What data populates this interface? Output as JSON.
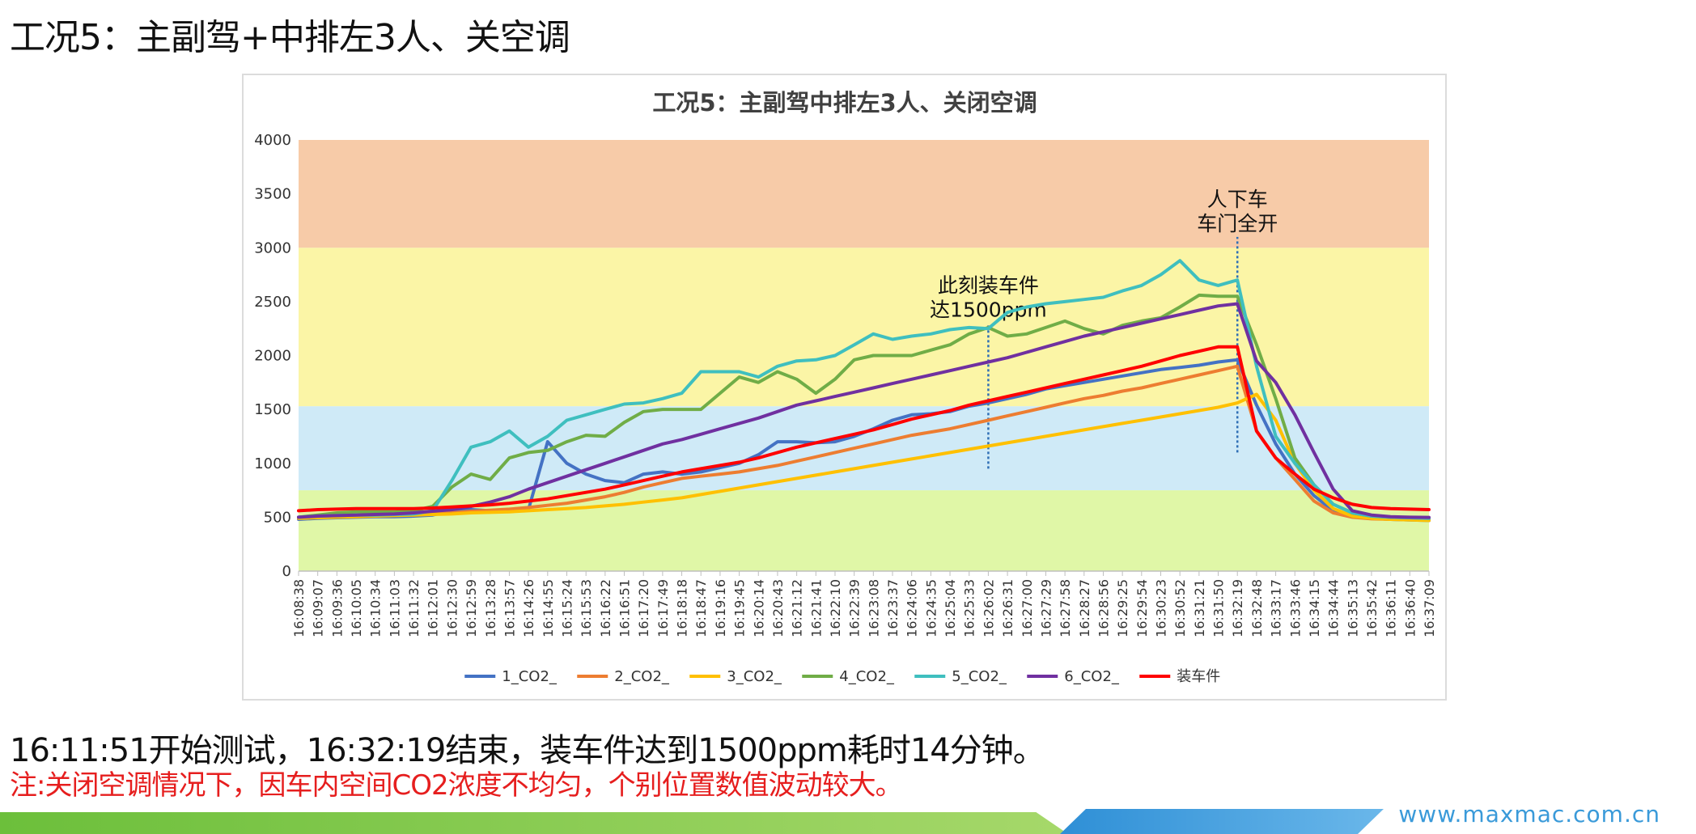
{
  "slide": {
    "title": "工况5：主副驾+中排左3人、关空调",
    "summary": "16:11:51开始测试，16:32:19结束，装车件达到1500ppm耗时14分钟。",
    "note": "注:关闭空调情况下，因车内空间CO2浓度不均匀，个别位置数值波动较大。",
    "footer_url": "www.maxmac.com.cn"
  },
  "chart_data": {
    "type": "line",
    "title": "工况5：主副驾中排左3人、关闭空调",
    "xlabel": "",
    "ylabel": "",
    "ylim": [
      0,
      4000
    ],
    "yticks": [
      0,
      500,
      1000,
      1500,
      2000,
      2500,
      3000,
      3500,
      4000
    ],
    "grid": false,
    "legend": "bottom",
    "bands": [
      {
        "from": 0,
        "to": 750,
        "color": "#e0f7a7"
      },
      {
        "from": 750,
        "to": 1530,
        "color": "#cfeaf7"
      },
      {
        "from": 1530,
        "to": 3000,
        "color": "#fbf5a6"
      },
      {
        "from": 3000,
        "to": 4000,
        "color": "#f7cba8"
      }
    ],
    "x": [
      "16:08:38",
      "16:09:07",
      "16:09:36",
      "16:10:05",
      "16:10:34",
      "16:11:03",
      "16:11:32",
      "16:12:01",
      "16:12:30",
      "16:12:59",
      "16:13:28",
      "16:13:57",
      "16:14:26",
      "16:14:55",
      "16:15:24",
      "16:15:53",
      "16:16:22",
      "16:16:51",
      "16:17:20",
      "16:17:49",
      "16:18:18",
      "16:18:47",
      "16:19:16",
      "16:19:45",
      "16:20:14",
      "16:20:43",
      "16:21:12",
      "16:21:41",
      "16:22:10",
      "16:22:39",
      "16:23:08",
      "16:23:37",
      "16:24:06",
      "16:24:35",
      "16:25:04",
      "16:25:33",
      "16:26:02",
      "16:26:31",
      "16:27:00",
      "16:27:29",
      "16:27:58",
      "16:28:27",
      "16:28:56",
      "16:29:25",
      "16:29:54",
      "16:30:23",
      "16:30:52",
      "16:31:21",
      "16:31:50",
      "16:32:19",
      "16:32:48",
      "16:33:17",
      "16:33:46",
      "16:34:15",
      "16:34:44",
      "16:35:13",
      "16:35:42",
      "16:36:11",
      "16:36:40",
      "16:37:09"
    ],
    "series": [
      {
        "name": "1_CO2_",
        "color": "#4472c4",
        "values": [
          480,
          490,
          495,
          500,
          505,
          505,
          510,
          520,
          560,
          570,
          560,
          560,
          570,
          1200,
          1000,
          900,
          840,
          820,
          900,
          920,
          900,
          920,
          960,
          1000,
          1080,
          1200,
          1200,
          1190,
          1200,
          1250,
          1320,
          1400,
          1450,
          1460,
          1480,
          1530,
          1560,
          1600,
          1640,
          1690,
          1720,
          1750,
          1780,
          1810,
          1840,
          1870,
          1890,
          1910,
          1940,
          1960,
          1540,
          1180,
          900,
          700,
          560,
          510,
          490,
          480,
          475,
          470
        ]
      },
      {
        "name": "2_CO2_",
        "color": "#ed7d31",
        "values": [
          490,
          500,
          505,
          510,
          515,
          520,
          520,
          530,
          540,
          555,
          565,
          575,
          590,
          610,
          630,
          660,
          690,
          730,
          780,
          820,
          860,
          880,
          900,
          920,
          950,
          980,
          1020,
          1060,
          1100,
          1140,
          1180,
          1220,
          1260,
          1290,
          1320,
          1360,
          1400,
          1440,
          1480,
          1520,
          1560,
          1600,
          1630,
          1670,
          1700,
          1740,
          1780,
          1820,
          1860,
          1900,
          1300,
          1050,
          850,
          650,
          540,
          500,
          485,
          480,
          478,
          476
        ]
      },
      {
        "name": "3_CO2_",
        "color": "#ffc000",
        "values": [
          490,
          495,
          500,
          505,
          510,
          515,
          520,
          525,
          530,
          540,
          545,
          550,
          560,
          570,
          580,
          590,
          605,
          620,
          640,
          660,
          680,
          710,
          740,
          770,
          800,
          830,
          860,
          890,
          920,
          950,
          980,
          1010,
          1040,
          1070,
          1100,
          1130,
          1160,
          1190,
          1220,
          1250,
          1280,
          1310,
          1340,
          1370,
          1400,
          1430,
          1460,
          1490,
          1520,
          1560,
          1640,
          1400,
          1000,
          750,
          580,
          510,
          490,
          480,
          475,
          470
        ]
      },
      {
        "name": "4_CO2_",
        "color": "#70ad47",
        "values": [
          500,
          520,
          540,
          550,
          550,
          550,
          560,
          600,
          780,
          900,
          850,
          1050,
          1100,
          1120,
          1200,
          1260,
          1250,
          1380,
          1480,
          1500,
          1500,
          1500,
          1650,
          1800,
          1750,
          1850,
          1780,
          1650,
          1780,
          1960,
          2000,
          2000,
          2000,
          2050,
          2100,
          2200,
          2260,
          2180,
          2200,
          2260,
          2320,
          2250,
          2200,
          2280,
          2320,
          2350,
          2450,
          2560,
          2550,
          2550,
          2100,
          1600,
          1050,
          800,
          620,
          540,
          510,
          500,
          495,
          490
        ]
      },
      {
        "name": "5_CO2_",
        "color": "#3fbfbf",
        "values": [
          500,
          510,
          515,
          520,
          520,
          525,
          530,
          560,
          840,
          1150,
          1200,
          1300,
          1150,
          1250,
          1400,
          1450,
          1500,
          1550,
          1560,
          1600,
          1650,
          1850,
          1850,
          1850,
          1800,
          1900,
          1950,
          1960,
          2000,
          2100,
          2200,
          2150,
          2180,
          2200,
          2240,
          2260,
          2250,
          2400,
          2450,
          2480,
          2500,
          2520,
          2540,
          2600,
          2650,
          2750,
          2880,
          2700,
          2650,
          2700,
          1900,
          1250,
          1000,
          800,
          620,
          540,
          510,
          500,
          495,
          490
        ]
      },
      {
        "name": "6_CO2_",
        "color": "#7030a0",
        "values": [
          500,
          510,
          515,
          520,
          525,
          530,
          540,
          555,
          570,
          600,
          640,
          690,
          760,
          820,
          880,
          940,
          1000,
          1060,
          1120,
          1180,
          1220,
          1270,
          1320,
          1370,
          1420,
          1480,
          1540,
          1580,
          1620,
          1660,
          1700,
          1740,
          1780,
          1820,
          1860,
          1900,
          1940,
          1980,
          2030,
          2080,
          2130,
          2180,
          2220,
          2260,
          2300,
          2340,
          2380,
          2420,
          2460,
          2480,
          1950,
          1750,
          1450,
          1100,
          760,
          560,
          520,
          505,
          500,
          498
        ]
      },
      {
        "name": "装车件",
        "color": "#ff0000",
        "values": [
          560,
          570,
          575,
          580,
          580,
          580,
          580,
          585,
          595,
          605,
          615,
          630,
          650,
          670,
          700,
          730,
          760,
          800,
          840,
          880,
          920,
          950,
          980,
          1010,
          1050,
          1100,
          1150,
          1190,
          1230,
          1270,
          1310,
          1360,
          1410,
          1450,
          1490,
          1540,
          1580,
          1620,
          1660,
          1700,
          1740,
          1780,
          1820,
          1860,
          1900,
          1950,
          2000,
          2040,
          2080,
          2080,
          1300,
          1050,
          900,
          760,
          680,
          620,
          590,
          580,
          575,
          570
        ]
      }
    ],
    "annotations": [
      {
        "x": "16:26:02",
        "lines": [
          "此刻装车件",
          "达1500ppm"
        ],
        "y_from": 950,
        "y_to": 2300
      },
      {
        "x": "16:32:19",
        "lines": [
          "人下车",
          "车门全开"
        ],
        "y_from": 1100,
        "y_to": 3100
      }
    ]
  }
}
